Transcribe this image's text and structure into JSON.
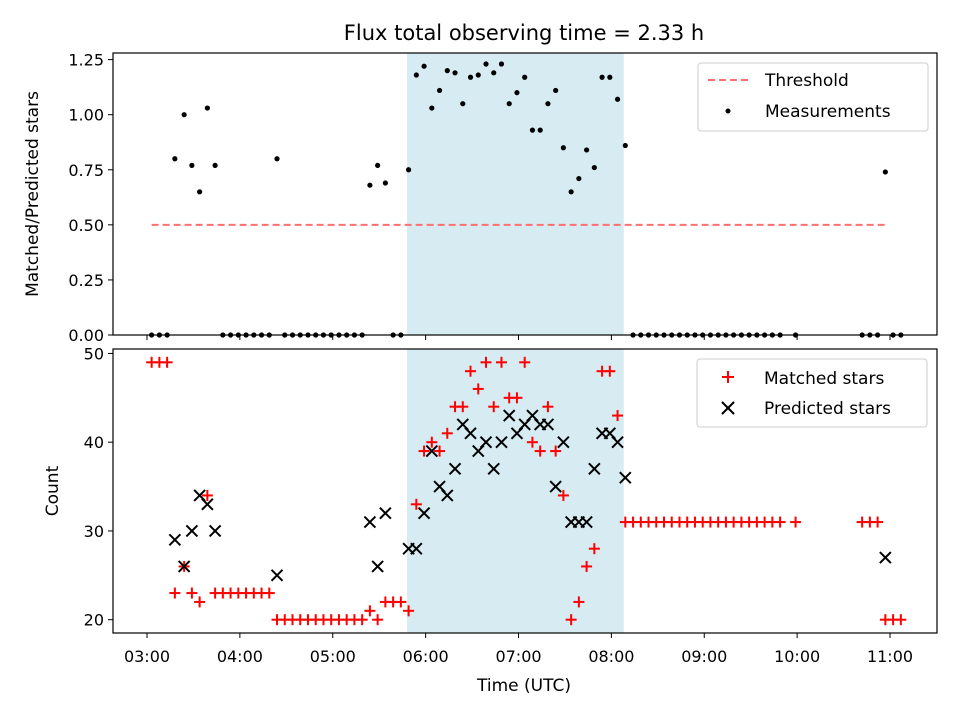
{
  "title": "Flux total observing time = 2.33 h",
  "shaded_interval": [
    "05:48",
    "08:08"
  ],
  "shade_color": "#add8e6",
  "chart_data": [
    {
      "type": "scatter",
      "panel": "top",
      "ylabel": "Matched/Predicted stars",
      "ylim": [
        0,
        1.28
      ],
      "yticks": [
        0,
        0.25,
        0.5,
        0.75,
        1.0,
        1.25
      ],
      "ytick_labels": [
        "0.00",
        "0.25",
        "0.50",
        "0.75",
        "1.00",
        "1.25"
      ],
      "legend": {
        "position": "top-right",
        "entries": [
          {
            "label": "Threshold",
            "marker": "dashed-line",
            "color": "#ff7070"
          },
          {
            "label": "Measurements",
            "marker": "dot",
            "color": "#000000"
          }
        ]
      },
      "threshold": {
        "y": 0.5,
        "x": [
          "03:03",
          "10:57"
        ]
      },
      "series": [
        {
          "name": "Measurements",
          "color": "#000000",
          "points": [
            [
              "03:03",
              0
            ],
            [
              "03:08",
              0
            ],
            [
              "03:13",
              0
            ],
            [
              "03:18",
              0.8
            ],
            [
              "03:24",
              1.0
            ],
            [
              "03:29",
              0.77
            ],
            [
              "03:34",
              0.65
            ],
            [
              "03:39",
              1.03
            ],
            [
              "03:44",
              0.77
            ],
            [
              "03:49",
              0
            ],
            [
              "03:54",
              0
            ],
            [
              "03:59",
              0
            ],
            [
              "04:04",
              0
            ],
            [
              "04:09",
              0
            ],
            [
              "04:14",
              0
            ],
            [
              "04:19",
              0
            ],
            [
              "04:24",
              0.8
            ],
            [
              "04:29",
              0
            ],
            [
              "04:34",
              0
            ],
            [
              "04:39",
              0
            ],
            [
              "04:44",
              0
            ],
            [
              "04:49",
              0
            ],
            [
              "04:54",
              0
            ],
            [
              "04:59",
              0
            ],
            [
              "05:04",
              0
            ],
            [
              "05:09",
              0
            ],
            [
              "05:14",
              0
            ],
            [
              "05:19",
              0
            ],
            [
              "05:24",
              0.68
            ],
            [
              "05:29",
              0.77
            ],
            [
              "05:34",
              0.69
            ],
            [
              "05:39",
              0
            ],
            [
              "05:44",
              0
            ],
            [
              "05:49",
              0.75
            ],
            [
              "05:54",
              1.18
            ],
            [
              "05:59",
              1.22
            ],
            [
              "06:04",
              1.03
            ],
            [
              "06:09",
              1.11
            ],
            [
              "06:14",
              1.2
            ],
            [
              "06:19",
              1.19
            ],
            [
              "06:24",
              1.05
            ],
            [
              "06:29",
              1.17
            ],
            [
              "06:34",
              1.18
            ],
            [
              "06:39",
              1.23
            ],
            [
              "06:44",
              1.19
            ],
            [
              "06:49",
              1.23
            ],
            [
              "06:54",
              1.05
            ],
            [
              "06:59",
              1.1
            ],
            [
              "07:04",
              1.17
            ],
            [
              "07:09",
              0.93
            ],
            [
              "07:14",
              0.93
            ],
            [
              "07:19",
              1.05
            ],
            [
              "07:24",
              1.11
            ],
            [
              "07:29",
              0.85
            ],
            [
              "07:34",
              0.65
            ],
            [
              "07:39",
              0.71
            ],
            [
              "07:44",
              0.84
            ],
            [
              "07:49",
              0.76
            ],
            [
              "07:54",
              1.17
            ],
            [
              "07:59",
              1.17
            ],
            [
              "08:04",
              1.07
            ],
            [
              "08:09",
              0.86
            ],
            [
              "08:14",
              0
            ],
            [
              "08:19",
              0
            ],
            [
              "08:24",
              0
            ],
            [
              "08:29",
              0
            ],
            [
              "08:34",
              0
            ],
            [
              "08:39",
              0
            ],
            [
              "08:44",
              0
            ],
            [
              "08:49",
              0
            ],
            [
              "08:54",
              0
            ],
            [
              "08:59",
              0
            ],
            [
              "09:04",
              0
            ],
            [
              "09:09",
              0
            ],
            [
              "09:14",
              0
            ],
            [
              "09:19",
              0
            ],
            [
              "09:24",
              0
            ],
            [
              "09:29",
              0
            ],
            [
              "09:34",
              0
            ],
            [
              "09:39",
              0
            ],
            [
              "09:44",
              0
            ],
            [
              "09:49",
              0
            ],
            [
              "09:59",
              0
            ],
            [
              "10:42",
              0
            ],
            [
              "10:47",
              0
            ],
            [
              "10:52",
              0
            ],
            [
              "10:57",
              0.74
            ],
            [
              "11:02",
              0
            ],
            [
              "11:07",
              0
            ]
          ]
        }
      ]
    },
    {
      "type": "scatter",
      "panel": "bottom",
      "xlabel": "Time (UTC)",
      "ylabel": "Count",
      "ylim": [
        18.5,
        50.5
      ],
      "yticks": [
        20,
        30,
        40,
        50
      ],
      "xlim": [
        "02:43",
        "11:33"
      ],
      "xticks": [
        "03:00",
        "04:00",
        "05:00",
        "06:00",
        "07:00",
        "08:00",
        "09:00",
        "10:00",
        "11:00"
      ],
      "legend": {
        "position": "top-right",
        "entries": [
          {
            "label": "Matched stars",
            "marker": "+",
            "color": "#ff0000"
          },
          {
            "label": "Predicted stars",
            "marker": "x",
            "color": "#000000"
          }
        ]
      },
      "series": [
        {
          "name": "Matched stars",
          "color": "#ff0000",
          "marker": "+",
          "points": [
            [
              "03:03",
              49
            ],
            [
              "03:08",
              49
            ],
            [
              "03:13",
              49
            ],
            [
              "03:18",
              23
            ],
            [
              "03:24",
              26
            ],
            [
              "03:29",
              23
            ],
            [
              "03:34",
              22
            ],
            [
              "03:39",
              34
            ],
            [
              "03:44",
              23
            ],
            [
              "03:49",
              23
            ],
            [
              "03:54",
              23
            ],
            [
              "03:59",
              23
            ],
            [
              "04:04",
              23
            ],
            [
              "04:09",
              23
            ],
            [
              "04:14",
              23
            ],
            [
              "04:19",
              23
            ],
            [
              "04:24",
              20
            ],
            [
              "04:29",
              20
            ],
            [
              "04:34",
              20
            ],
            [
              "04:39",
              20
            ],
            [
              "04:44",
              20
            ],
            [
              "04:49",
              20
            ],
            [
              "04:54",
              20
            ],
            [
              "04:59",
              20
            ],
            [
              "05:04",
              20
            ],
            [
              "05:09",
              20
            ],
            [
              "05:14",
              20
            ],
            [
              "05:19",
              20
            ],
            [
              "05:24",
              21
            ],
            [
              "05:29",
              20
            ],
            [
              "05:34",
              22
            ],
            [
              "05:39",
              22
            ],
            [
              "05:44",
              22
            ],
            [
              "05:49",
              21
            ],
            [
              "05:54",
              33
            ],
            [
              "05:59",
              39
            ],
            [
              "06:04",
              40
            ],
            [
              "06:09",
              39
            ],
            [
              "06:14",
              41
            ],
            [
              "06:19",
              44
            ],
            [
              "06:24",
              44
            ],
            [
              "06:29",
              48
            ],
            [
              "06:34",
              46
            ],
            [
              "06:39",
              49
            ],
            [
              "06:44",
              44
            ],
            [
              "06:49",
              49
            ],
            [
              "06:54",
              45
            ],
            [
              "06:59",
              45
            ],
            [
              "07:04",
              49
            ],
            [
              "07:09",
              40
            ],
            [
              "07:14",
              39
            ],
            [
              "07:19",
              44
            ],
            [
              "07:24",
              39
            ],
            [
              "07:29",
              34
            ],
            [
              "07:34",
              20
            ],
            [
              "07:39",
              22
            ],
            [
              "07:44",
              26
            ],
            [
              "07:49",
              28
            ],
            [
              "07:54",
              48
            ],
            [
              "07:59",
              48
            ],
            [
              "08:04",
              43
            ],
            [
              "08:09",
              31
            ],
            [
              "08:14",
              31
            ],
            [
              "08:19",
              31
            ],
            [
              "08:24",
              31
            ],
            [
              "08:29",
              31
            ],
            [
              "08:34",
              31
            ],
            [
              "08:39",
              31
            ],
            [
              "08:44",
              31
            ],
            [
              "08:49",
              31
            ],
            [
              "08:54",
              31
            ],
            [
              "08:59",
              31
            ],
            [
              "09:04",
              31
            ],
            [
              "09:09",
              31
            ],
            [
              "09:14",
              31
            ],
            [
              "09:19",
              31
            ],
            [
              "09:24",
              31
            ],
            [
              "09:29",
              31
            ],
            [
              "09:34",
              31
            ],
            [
              "09:39",
              31
            ],
            [
              "09:44",
              31
            ],
            [
              "09:49",
              31
            ],
            [
              "09:59",
              31
            ],
            [
              "10:42",
              31
            ],
            [
              "10:47",
              31
            ],
            [
              "10:52",
              31
            ],
            [
              "10:57",
              20
            ],
            [
              "11:02",
              20
            ],
            [
              "11:07",
              20
            ]
          ]
        },
        {
          "name": "Predicted stars",
          "color": "#000000",
          "marker": "x",
          "points": [
            [
              "03:18",
              29
            ],
            [
              "03:24",
              26
            ],
            [
              "03:29",
              30
            ],
            [
              "03:34",
              34
            ],
            [
              "03:39",
              33
            ],
            [
              "03:44",
              30
            ],
            [
              "04:24",
              25
            ],
            [
              "05:24",
              31
            ],
            [
              "05:29",
              26
            ],
            [
              "05:34",
              32
            ],
            [
              "05:49",
              28
            ],
            [
              "05:54",
              28
            ],
            [
              "05:59",
              32
            ],
            [
              "06:04",
              39
            ],
            [
              "06:09",
              35
            ],
            [
              "06:14",
              34
            ],
            [
              "06:19",
              37
            ],
            [
              "06:24",
              42
            ],
            [
              "06:29",
              41
            ],
            [
              "06:34",
              39
            ],
            [
              "06:39",
              40
            ],
            [
              "06:44",
              37
            ],
            [
              "06:49",
              40
            ],
            [
              "06:54",
              43
            ],
            [
              "06:59",
              41
            ],
            [
              "07:04",
              42
            ],
            [
              "07:09",
              43
            ],
            [
              "07:14",
              42
            ],
            [
              "07:19",
              42
            ],
            [
              "07:24",
              35
            ],
            [
              "07:29",
              40
            ],
            [
              "07:34",
              31
            ],
            [
              "07:39",
              31
            ],
            [
              "07:44",
              31
            ],
            [
              "07:49",
              37
            ],
            [
              "07:54",
              41
            ],
            [
              "07:59",
              41
            ],
            [
              "08:04",
              40
            ],
            [
              "08:09",
              36
            ],
            [
              "10:57",
              27
            ]
          ]
        }
      ]
    }
  ]
}
